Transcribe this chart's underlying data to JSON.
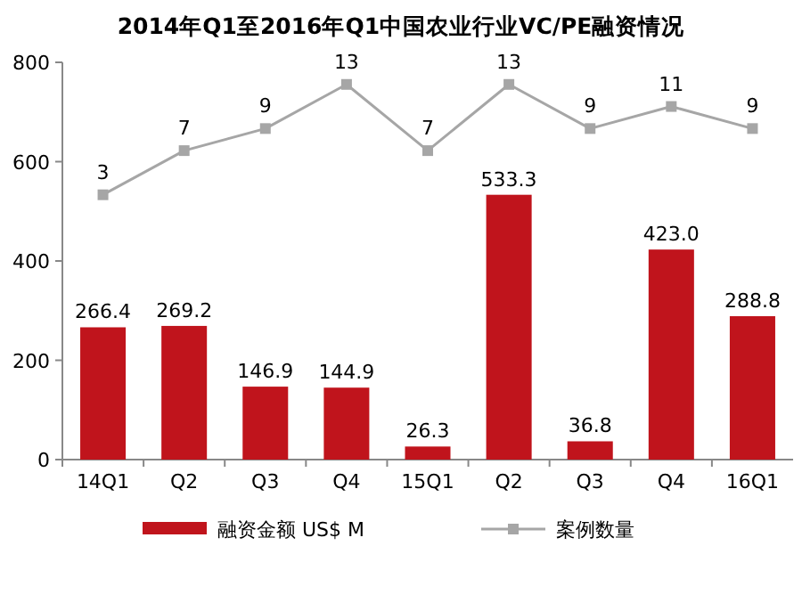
{
  "chart_data": {
    "type": "bar",
    "title": "2014年Q1至2016年Q1中国农业行业VC/PE融资情况",
    "categories": [
      "14Q1",
      "Q2",
      "Q3",
      "Q4",
      "15Q1",
      "Q2",
      "Q3",
      "Q4",
      "16Q1"
    ],
    "series": [
      {
        "name": "融资金额 US$ M",
        "color": "#c0141c",
        "values": [
          266.4,
          269.2,
          146.9,
          144.9,
          26.3,
          533.3,
          36.8,
          423.0,
          288.8
        ],
        "value_labels": [
          "266.4",
          "269.2",
          "146.9",
          "144.9",
          "26.3",
          "533.3",
          "36.8",
          "423.0",
          "288.8"
        ]
      },
      {
        "name": "案例数量",
        "type": "line",
        "axis": "y2",
        "color": "#a6a6a6",
        "marker": "square",
        "values": [
          3,
          7,
          9,
          13,
          7,
          13,
          9,
          11,
          9
        ]
      }
    ],
    "ylim": [
      0,
      800
    ],
    "yticks": [
      0,
      200,
      400,
      600,
      800
    ],
    "y2lim": [
      -21,
      15
    ],
    "data_labels": true,
    "legend": "bottom",
    "grid": false
  }
}
